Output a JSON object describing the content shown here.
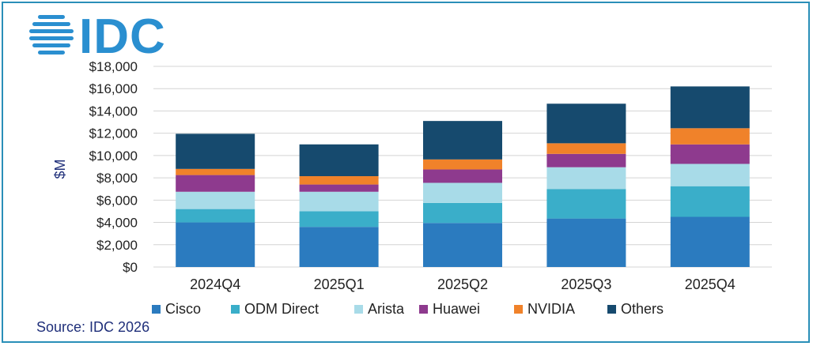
{
  "logo": {
    "text": "IDC",
    "color": "#2a8fd0"
  },
  "chart_data": {
    "type": "bar",
    "stacked": true,
    "title": "",
    "xlabel": "",
    "ylabel": "$M",
    "ylim": [
      0,
      18000
    ],
    "yticks": [
      0,
      2000,
      4000,
      6000,
      8000,
      10000,
      12000,
      14000,
      16000,
      18000
    ],
    "ytick_labels": [
      "$0",
      "$2,000",
      "$4,000",
      "$6,000",
      "$8,000",
      "$10,000",
      "$12,000",
      "$14,000",
      "$16,000",
      "$18,000"
    ],
    "grid": true,
    "legend_position": "bottom",
    "categories": [
      "2024Q4",
      "2025Q1",
      "2025Q2",
      "2025Q3",
      "2025Q4"
    ],
    "series": [
      {
        "name": "Cisco",
        "color": "#2b7bbf",
        "values": [
          4000,
          3600,
          3950,
          4350,
          4500
        ]
      },
      {
        "name": "ODM Direct",
        "color": "#3aaec9",
        "values": [
          1200,
          1400,
          1800,
          2650,
          2750
        ]
      },
      {
        "name": "Arista",
        "color": "#a8dbe8",
        "values": [
          1550,
          1750,
          1800,
          1950,
          2000
        ]
      },
      {
        "name": "Huawei",
        "color": "#8e3a8e",
        "values": [
          1500,
          650,
          1200,
          1200,
          1750
        ]
      },
      {
        "name": "NVIDIA",
        "color": "#f0822a",
        "values": [
          550,
          750,
          900,
          950,
          1450
        ]
      },
      {
        "name": "Others",
        "color": "#164a6e",
        "values": [
          3150,
          2850,
          3450,
          3550,
          3750
        ]
      }
    ]
  },
  "source": "Source: IDC 2026"
}
